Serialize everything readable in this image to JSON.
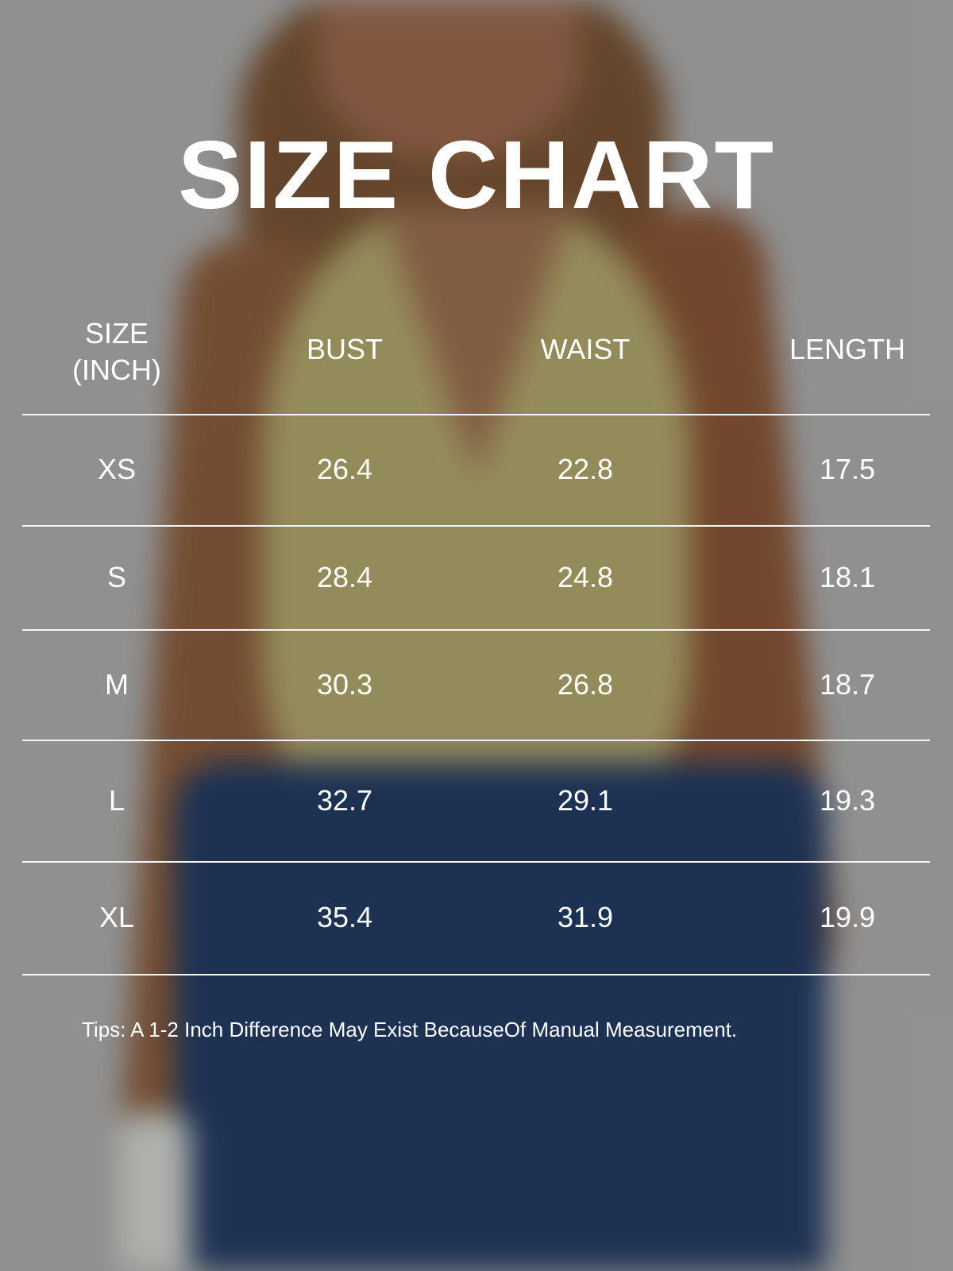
{
  "title": "SIZE CHART",
  "columns": [
    "SIZE\n(INCH)",
    "BUST",
    "WAIST",
    "LENGTH"
  ],
  "header": {
    "size_line1": "SIZE",
    "size_line2": "(INCH)",
    "bust": "BUST",
    "waist": "WAIST",
    "length": "LENGTH"
  },
  "rows": [
    {
      "size": "XS",
      "bust": "26.4",
      "waist": "22.8",
      "length": "17.5"
    },
    {
      "size": "S",
      "bust": "28.4",
      "waist": "24.8",
      "length": "18.1"
    },
    {
      "size": "M",
      "bust": "30.3",
      "waist": "26.8",
      "length": "18.7"
    },
    {
      "size": "L",
      "bust": "32.7",
      "waist": "29.1",
      "length": "19.3"
    },
    {
      "size": "XL",
      "bust": "35.4",
      "waist": "31.9",
      "length": "19.9"
    }
  ],
  "tips": "Tips: A 1-2 Inch Difference May Exist BecauseOf Manual Measurement.",
  "colors": {
    "background": "#9a9a9a",
    "text": "#ffffff"
  }
}
